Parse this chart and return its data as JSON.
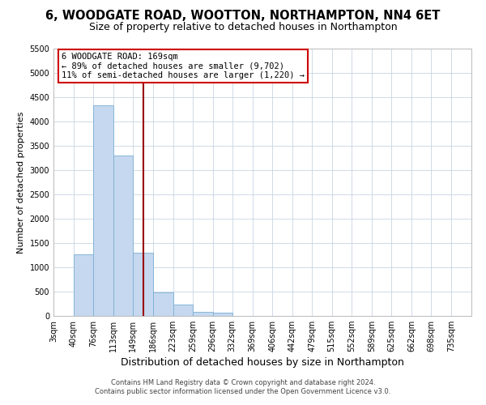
{
  "title1": "6, WOODGATE ROAD, WOOTTON, NORTHAMPTON, NN4 6ET",
  "title2": "Size of property relative to detached houses in Northampton",
  "xlabel": "Distribution of detached houses by size in Northampton",
  "ylabel": "Number of detached properties",
  "bin_labels": [
    "3sqm",
    "40sqm",
    "76sqm",
    "113sqm",
    "149sqm",
    "186sqm",
    "223sqm",
    "259sqm",
    "296sqm",
    "332sqm",
    "369sqm",
    "406sqm",
    "442sqm",
    "479sqm",
    "515sqm",
    "552sqm",
    "589sqm",
    "625sqm",
    "662sqm",
    "698sqm",
    "735sqm"
  ],
  "bin_edges": [
    3,
    40,
    76,
    113,
    149,
    186,
    223,
    259,
    296,
    332,
    369,
    406,
    442,
    479,
    515,
    552,
    589,
    625,
    662,
    698,
    735
  ],
  "bar_heights": [
    0,
    1270,
    4330,
    3300,
    1300,
    480,
    240,
    90,
    60,
    0,
    0,
    0,
    0,
    0,
    0,
    0,
    0,
    0,
    0,
    0
  ],
  "bar_color": "#c5d8ef",
  "bar_edge_color": "#7aafd4",
  "property_value": 169,
  "vline_color": "#990000",
  "ylim": [
    0,
    5500
  ],
  "yticks": [
    0,
    500,
    1000,
    1500,
    2000,
    2500,
    3000,
    3500,
    4000,
    4500,
    5000,
    5500
  ],
  "annotation_title": "6 WOODGATE ROAD: 169sqm",
  "annotation_line1": "← 89% of detached houses are smaller (9,702)",
  "annotation_line2": "11% of semi-detached houses are larger (1,220) →",
  "annotation_box_color": "#ffffff",
  "annotation_box_edge": "#cc0000",
  "footer1": "Contains HM Land Registry data © Crown copyright and database right 2024.",
  "footer2": "Contains public sector information licensed under the Open Government Licence v3.0.",
  "background_color": "#ffffff",
  "grid_color": "#c8d4e3",
  "title1_fontsize": 10.5,
  "title2_fontsize": 9,
  "xlabel_fontsize": 9,
  "ylabel_fontsize": 8,
  "tick_fontsize": 7,
  "annotation_fontsize": 7.5,
  "footer_fontsize": 6
}
